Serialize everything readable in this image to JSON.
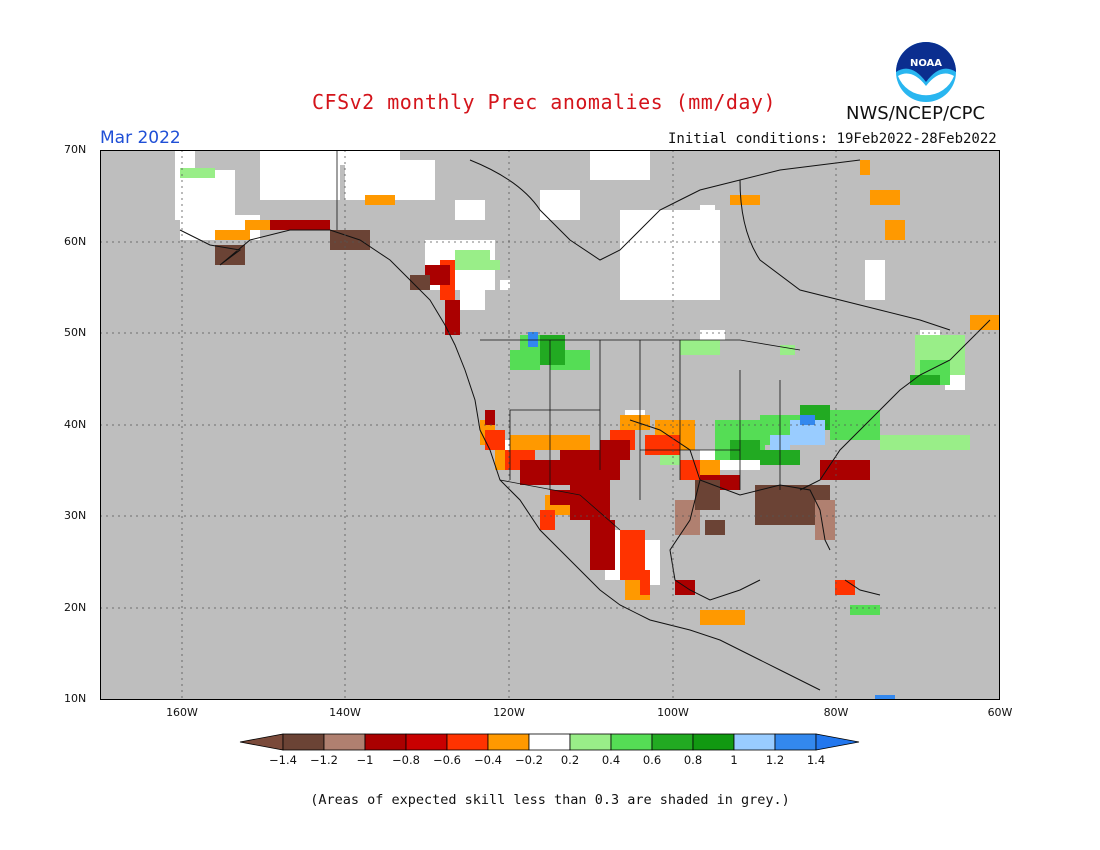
{
  "title": "CFSv2 monthly Prec anomalies (mm/day)",
  "agency": "NWS/NCEP/CPC",
  "logo_text": "NOAA",
  "period": "Mar 2022",
  "initial_conditions": "Initial conditions: 19Feb2022-28Feb2022",
  "map": {
    "lat_labels": [
      "70N",
      "60N",
      "50N",
      "40N",
      "30N",
      "20N",
      "10N"
    ],
    "lon_labels": [
      "160W",
      "140W",
      "120W",
      "100W",
      "80W",
      "60W"
    ],
    "background_color": "#bebebe",
    "region": {
      "lon_min": -170,
      "lon_max": -60,
      "lat_min": 10,
      "lat_max": 70
    }
  },
  "colorbar": {
    "labels": [
      "-1.4",
      "-1.2",
      "-1",
      "-0.8",
      "-0.6",
      "-0.4",
      "-0.2",
      "0.2",
      "0.4",
      "0.6",
      "0.8",
      "1",
      "1.2",
      "1.4"
    ],
    "colors": [
      "#7a4a3a",
      "#6b4335",
      "#b08070",
      "#aa0000",
      "#c80000",
      "#ff3300",
      "#ff9900",
      "#ffffff",
      "#99ee88",
      "#55dd55",
      "#22aa22",
      "#119911",
      "#99ccff",
      "#3388ee",
      "#2277ee"
    ]
  },
  "anomaly_legend": {
    "dark_brown": "#6b4335",
    "light_brown": "#b08070",
    "dark_red": "#aa0000",
    "red": "#c80000",
    "orange_red": "#ff3300",
    "orange": "#ff9900",
    "white": "#ffffff",
    "light_green": "#99ee88",
    "green": "#55dd55",
    "dark_green": "#22aa22",
    "light_blue": "#99ccff",
    "blue": "#3388ee"
  },
  "footnote": "(Areas of expected skill less than 0.3 are shaded in grey.)"
}
